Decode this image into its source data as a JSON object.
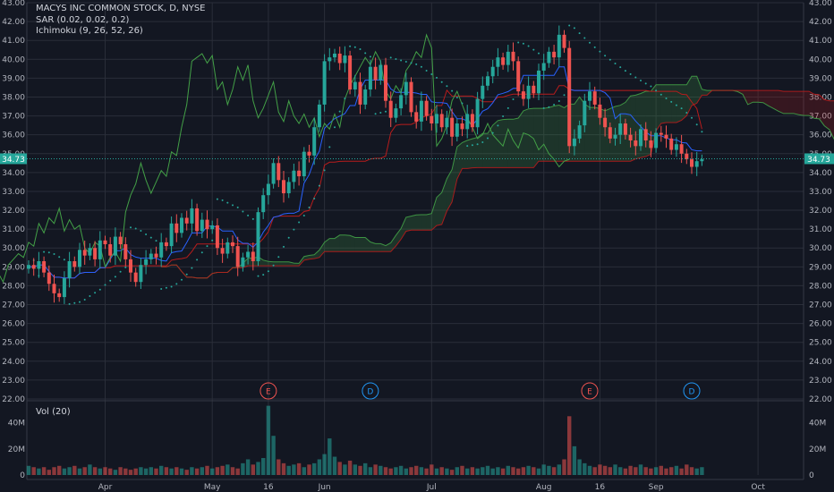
{
  "chart_data": {
    "type": "candlestick",
    "title": "MACYS INC COMMON STOCK, D, NYSE",
    "indicators": [
      "SAR (0.02, 0.02, 0.2)",
      "Ichimoku (9, 26, 52, 26)"
    ],
    "volume_label": "Vol (20)",
    "last_price": "34.73",
    "price_axis": {
      "min": 22,
      "max": 43,
      "step": 1,
      "ticks": [
        "22.00",
        "23.00",
        "24.00",
        "25.00",
        "26.00",
        "27.00",
        "28.00",
        "29.00",
        "30.00",
        "31.00",
        "32.00",
        "33.00",
        "34.00",
        "35.00",
        "36.00",
        "37.00",
        "38.00",
        "39.00",
        "40.00",
        "41.00",
        "42.00",
        "43.00"
      ]
    },
    "volume_axis": {
      "ticks": [
        "0",
        "20M",
        "40M"
      ]
    },
    "x_labels": [
      {
        "label": "Apr",
        "bar": 15
      },
      {
        "label": "May",
        "bar": 36
      },
      {
        "label": "16",
        "bar": 47
      },
      {
        "label": "Jun",
        "bar": 58
      },
      {
        "label": "Jul",
        "bar": 79
      },
      {
        "label": "Aug",
        "bar": 101
      },
      {
        "label": "16",
        "bar": 112
      },
      {
        "label": "Sep",
        "bar": 123
      },
      {
        "label": "Oct",
        "bar": 143
      }
    ],
    "events": [
      {
        "label": "E",
        "bar": 47,
        "color": "#ef5350"
      },
      {
        "label": "D",
        "bar": 67,
        "color": "#2196f3"
      },
      {
        "label": "E",
        "bar": 110,
        "color": "#ef5350"
      },
      {
        "label": "D",
        "bar": 130,
        "color": "#2196f3"
      }
    ],
    "closes": [
      29.1,
      28.9,
      29.3,
      28.7,
      28.1,
      27.6,
      27.4,
      28.4,
      29.3,
      29.0,
      29.9,
      29.6,
      30.0,
      29.4,
      30.4,
      30.2,
      29.6,
      30.6,
      30.2,
      29.4,
      28.7,
      28.2,
      29.1,
      29.4,
      29.7,
      29.5,
      30.3,
      30.1,
      31.3,
      30.8,
      31.6,
      31.3,
      32.1,
      30.9,
      31.5,
      31.0,
      31.2,
      30.0,
      29.7,
      30.3,
      30.1,
      29.0,
      29.5,
      29.8,
      29.3,
      31.9,
      32.8,
      33.4,
      34.5,
      33.6,
      32.9,
      33.5,
      34.1,
      33.8,
      35.1,
      34.9,
      36.4,
      37.6,
      39.9,
      40.1,
      40.3,
      39.8,
      40.2,
      38.4,
      38.8,
      37.6,
      38.4,
      39.6,
      38.9,
      39.7,
      37.8,
      36.9,
      37.4,
      38.1,
      38.8,
      37.2,
      36.7,
      37.8,
      37.0,
      36.6,
      37.1,
      36.4,
      36.9,
      35.9,
      36.6,
      36.3,
      37.1,
      36.4,
      37.9,
      38.6,
      39.1,
      39.6,
      40.1,
      39.7,
      40.4,
      39.9,
      38.3,
      37.9,
      38.6,
      38.2,
      39.4,
      39.8,
      40.4,
      40.1,
      41.3,
      40.6,
      35.4,
      35.8,
      36.5,
      37.8,
      38.3,
      37.6,
      36.9,
      36.4,
      35.8,
      36.0,
      36.6,
      36.0,
      35.7,
      35.4,
      36.3,
      35.7,
      35.3,
      36.1,
      36.0,
      35.8,
      35.2,
      35.5,
      35.0,
      34.7,
      34.3,
      34.6,
      34.7
    ],
    "volumes_millions": [
      7,
      6,
      5,
      6,
      4,
      6,
      7,
      5,
      6,
      7,
      5,
      6,
      8,
      6,
      5,
      6,
      5,
      4,
      6,
      5,
      4,
      5,
      6,
      5,
      6,
      5,
      7,
      6,
      5,
      6,
      5,
      4,
      6,
      5,
      6,
      7,
      5,
      6,
      7,
      8,
      6,
      5,
      9,
      12,
      8,
      10,
      13,
      53,
      30,
      12,
      9,
      7,
      8,
      9,
      6,
      8,
      9,
      12,
      16,
      28,
      14,
      10,
      8,
      11,
      8,
      7,
      9,
      6,
      8,
      7,
      6,
      5,
      6,
      7,
      5,
      6,
      7,
      6,
      5,
      8,
      5,
      6,
      5,
      4,
      6,
      7,
      5,
      6,
      5,
      6,
      7,
      5,
      6,
      5,
      7,
      6,
      5,
      6,
      7,
      6,
      5,
      8,
      7,
      6,
      8,
      12,
      45,
      22,
      12,
      9,
      7,
      6,
      8,
      7,
      6,
      8,
      6,
      5,
      7,
      6,
      8,
      6,
      5,
      6,
      7,
      5,
      6,
      7,
      5,
      8,
      6,
      5,
      6
    ],
    "colors": {
      "up": "#26a69a",
      "down": "#ef5350",
      "background": "#131722",
      "grid": "#2a2e39",
      "axis_text": "#b2b5be",
      "conversion": "#2962ff",
      "base": "#b71c1c",
      "lagging": "#43a047",
      "sar": "#26a69a",
      "price_label": "#26a69a"
    }
  }
}
